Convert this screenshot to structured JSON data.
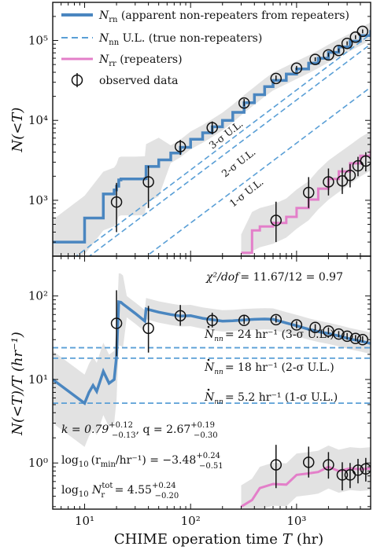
{
  "chart_data": [
    {
      "type": "line",
      "panel": "top",
      "ylabel": "N(<T)",
      "xscale": "log",
      "yscale": "log",
      "xlim": [
        5,
        5000
      ],
      "ylim": [
        200,
        300000
      ],
      "x_ticks": [
        10,
        100,
        1000
      ],
      "x_tick_labels": [
        "10¹",
        "10²",
        "10³"
      ],
      "y_ticks": [
        1000,
        10000,
        100000
      ],
      "y_tick_labels": [
        "10³",
        "10⁴",
        "10⁵"
      ],
      "legend": {
        "position": "top-left",
        "entries": [
          {
            "key": "rn",
            "label": "N_rn (apparent non-repeaters from repeaters)",
            "text_main": "N",
            "text_sub": "rn",
            "text_rest": " (apparent non-repeaters from repeaters)",
            "style": "solid",
            "color": "#4a86c0"
          },
          {
            "key": "nn",
            "label": "N_nn U.L. (true non-repeaters)",
            "text_main": "N",
            "text_sub": "nn",
            "text_rest": " U.L. (true non-repeaters)",
            "style": "dashed",
            "color": "#5a9fd6"
          },
          {
            "key": "rr",
            "label": "N_rr (repeaters)",
            "text_main": "N",
            "text_sub": "rr",
            "text_rest": " (repeaters)",
            "style": "solid",
            "color": "#e37fc9"
          },
          {
            "key": "obs",
            "label": "observed data",
            "text_main": "",
            "text_sub": "",
            "text_rest": "observed data",
            "style": "marker",
            "color": "#111111"
          }
        ]
      },
      "series": [
        {
          "name": "N_rn (apparent non-repeaters from repeaters)",
          "color": "#4a86c0",
          "x": [
            5,
            10,
            15,
            19,
            20,
            21,
            22,
            25,
            30,
            37,
            38,
            50,
            65,
            80,
            100,
            130,
            160,
            200,
            250,
            320,
            400,
            500,
            600,
            800,
            1000,
            1300,
            1600,
            2000,
            2500,
            3200,
            4000,
            5000
          ],
          "y": [
            300,
            600,
            1200,
            1350,
            1500,
            1800,
            1850,
            1850,
            1850,
            1870,
            2650,
            3200,
            3900,
            4600,
            5800,
            7000,
            8300,
            10000,
            12600,
            16600,
            21000,
            26500,
            31600,
            38000,
            44000,
            52000,
            60000,
            71000,
            83000,
            98000,
            115000,
            135000
          ]
        },
        {
          "name": "N_rr (repeaters)",
          "color": "#e37fc9",
          "x": [
            300,
            380,
            450,
            600,
            800,
            1000,
            1300,
            1600,
            2000,
            2500,
            3200,
            4000,
            5000
          ],
          "y": [
            220,
            420,
            470,
            520,
            620,
            800,
            1020,
            1400,
            1850,
            2300,
            2900,
            3600,
            4300
          ]
        }
      ],
      "upper_limits": [
        {
          "label": "1-σ U.L.",
          "rate_per_hr": 5.2,
          "color": "#5a9fd6"
        },
        {
          "label": "2-σ U.L.",
          "rate_per_hr": 18,
          "color": "#5a9fd6"
        },
        {
          "label": "3-σ U.L.",
          "rate_per_hr": 24,
          "color": "#5a9fd6"
        }
      ],
      "observed": {
        "x": [
          20,
          40,
          80,
          160,
          320,
          640,
          1000,
          1500,
          2000,
          2500,
          3000,
          3600,
          4200
        ],
        "y": [
          950,
          1700,
          4700,
          8100,
          16500,
          33500,
          45000,
          58000,
          66000,
          75000,
          92000,
          110000,
          130000
        ],
        "y_err_low": [
          550,
          900,
          1000,
          1400,
          1500,
          2000,
          2500,
          3000,
          3500,
          4000,
          5000,
          6000,
          7000
        ],
        "y_err_high": [
          700,
          1000,
          1000,
          1600,
          2000,
          3000,
          3000,
          3500,
          4000,
          4500,
          5500,
          6500,
          7500
        ]
      },
      "observed_repeaters": {
        "x": [
          640,
          1300,
          2000,
          2700,
          3200,
          3800,
          4500
        ],
        "y": [
          560,
          1250,
          1700,
          1750,
          2050,
          2700,
          3100
        ],
        "y_err_low": [
          260,
          450,
          550,
          550,
          600,
          700,
          800
        ],
        "y_err_high": [
          400,
          700,
          800,
          800,
          800,
          800,
          900
        ]
      }
    },
    {
      "type": "line",
      "panel": "bottom",
      "xlabel_main": "CHIME operation time",
      "xlabel_var": "T",
      "xlabel_unit": "(hr)",
      "ylabel": "N(<T)/T  (hr⁻¹)",
      "xscale": "log",
      "yscale": "log",
      "xlim": [
        5,
        5000
      ],
      "ylim": [
        0.28,
        300
      ],
      "x_ticks": [
        10,
        100,
        1000
      ],
      "x_tick_labels": [
        "10¹",
        "10²",
        "10³"
      ],
      "y_ticks": [
        1,
        10,
        100
      ],
      "y_tick_labels": [
        "10⁰",
        "10¹",
        "10²"
      ],
      "series": [
        {
          "name": "N_rn / T",
          "color": "#4a86c0",
          "x": [
            5,
            10,
            11,
            12,
            13,
            15,
            17,
            19,
            20,
            21,
            22,
            23,
            25,
            30,
            37,
            38,
            50,
            65,
            80,
            100,
            130,
            160,
            200,
            250,
            320,
            400,
            500,
            600,
            800,
            1000,
            1300,
            1600,
            2000,
            2500,
            3200,
            4000,
            5000
          ],
          "y": [
            10,
            5.2,
            7,
            8.5,
            7.2,
            12.5,
            9,
            10,
            19,
            85,
            84,
            80,
            74,
            62,
            50,
            70,
            64,
            60,
            57.5,
            58,
            54,
            52,
            50,
            50.5,
            51.8,
            52.5,
            53,
            52.6,
            47.5,
            44,
            40,
            37.5,
            35.5,
            33.2,
            30.6,
            28.8,
            27
          ]
        },
        {
          "name": "N_rr / T",
          "color": "#e37fc9",
          "x": [
            300,
            380,
            450,
            600,
            800,
            1000,
            1300,
            1600,
            2000,
            2500,
            3200,
            4000,
            5000
          ],
          "y": [
            0.3,
            0.36,
            0.5,
            0.56,
            0.55,
            0.72,
            0.75,
            0.78,
            0.9,
            0.8,
            0.86,
            0.84,
            0.86
          ]
        }
      ],
      "horizontal_lines": [
        {
          "value": 24,
          "rate_text": "= 24 hr⁻¹ (3-σ U.L.)"
        },
        {
          "value": 18,
          "rate_text": "= 18 hr⁻¹ (2-σ U.L.)"
        },
        {
          "value": 5.2,
          "rate_text": "= 5.2 hr⁻¹ (1-σ U.L.)"
        }
      ],
      "observed": {
        "x": [
          20,
          40,
          80,
          160,
          320,
          640,
          1000,
          1500,
          2000,
          2500,
          3000,
          3600,
          4200
        ],
        "y": [
          47,
          41,
          58,
          51,
          51,
          52,
          45,
          42,
          38,
          35,
          33,
          31,
          30
        ],
        "y_err_low": [
          28,
          20,
          14,
          9,
          5,
          4,
          4,
          3,
          3,
          3,
          3,
          2,
          2
        ],
        "y_err_high": [
          70,
          35,
          20,
          12,
          7,
          6,
          5,
          4,
          4,
          3,
          3,
          3,
          3
        ]
      },
      "observed_repeaters": {
        "x": [
          640,
          1300,
          2000,
          2700,
          3200,
          3800,
          4500
        ],
        "y": [
          0.95,
          1.02,
          0.95,
          0.72,
          0.72,
          0.82,
          0.85
        ],
        "y_err_low": [
          0.45,
          0.35,
          0.3,
          0.25,
          0.22,
          0.25,
          0.25
        ],
        "y_err_high": [
          0.7,
          0.55,
          0.4,
          0.3,
          0.28,
          0.3,
          0.3
        ]
      }
    }
  ],
  "annotations": {
    "chi2_lhs": "χ²/dof",
    "chi2_rhs": "= 11.67/12 = 0.97",
    "k_line": "k = 0.79",
    "k_sup": "+0.12",
    "k_sub": "−0.13",
    "q_line": ",  q = 2.67",
    "q_sup": "+0.19",
    "q_sub": "−0.30",
    "rmin_lhs": "log",
    "rmin_lhs_sub": "10",
    "rmin_mid": "(r",
    "rmin_mid_sub": "min",
    "rmin_rest": "/hr⁻¹) = −3.48",
    "rmin_sup": "+0.24",
    "rmin_sub": "−0.51",
    "ntot_lhs": "log",
    "ntot_lhs_sub": "10",
    "ntot_var": " N",
    "ntot_var_sub": "r",
    "ntot_var_sup": "tot",
    "ntot_rest": " = 4.55",
    "ntot_sup": "+0.24",
    "ntot_sub": "−0.20",
    "nn_dot_label": "N",
    "nn_dot_sub": "nn",
    "ul_labels": [
      "3-σ U.L.",
      "2-σ U.L.",
      "1-σ U.L."
    ]
  }
}
